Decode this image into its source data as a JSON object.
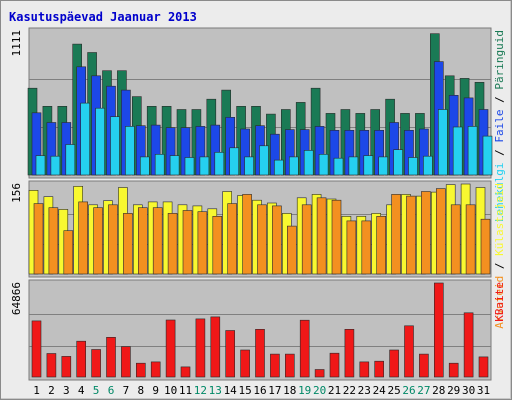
{
  "chart_data": {
    "type": "bar",
    "title": "Kasutuspäevad Jaanuar 2013",
    "colors": {
      "title": "#0000cc",
      "panel_bg": "#c0c0c0",
      "grid": "#808080",
      "weekday_label": "#000000",
      "weekend_label": "#008866",
      "sep_slash": "#000000"
    },
    "categories": [
      "1",
      "2",
      "3",
      "4",
      "5",
      "6",
      "7",
      "8",
      "9",
      "10",
      "11",
      "12",
      "13",
      "14",
      "15",
      "16",
      "17",
      "18",
      "19",
      "20",
      "21",
      "22",
      "23",
      "24",
      "25",
      "26",
      "27",
      "28",
      "29",
      "30",
      "31"
    ],
    "weekend_days": [
      "5",
      "6",
      "12",
      "13",
      "19",
      "20",
      "26",
      "27"
    ],
    "panels": [
      {
        "max_label": "1111",
        "ylim": [
          0,
          1111
        ],
        "series": [
          {
            "name": "Päringuid",
            "color": "#1a7a55",
            "values": [
              670,
              530,
              530,
              1010,
              945,
              805,
              805,
              605,
              530,
              530,
              505,
              505,
              585,
              655,
              530,
              530,
              470,
              505,
              560,
              670,
              475,
              505,
              475,
              505,
              585,
              475,
              475,
              1090,
              765,
              745,
              715
            ]
          },
          {
            "name": "Faile",
            "color": "#1c48e8",
            "values": [
              480,
              405,
              405,
              835,
              765,
              685,
              655,
              380,
              385,
              365,
              365,
              375,
              385,
              445,
              355,
              380,
              315,
              350,
              350,
              375,
              345,
              345,
              345,
              345,
              405,
              345,
              355,
              875,
              615,
              595,
              505
            ]
          },
          {
            "name": "Lehekülgi",
            "color": "#25d0f0",
            "values": [
              150,
              145,
              235,
              555,
              515,
              450,
              375,
              140,
              160,
              150,
              135,
              140,
              175,
              210,
              140,
              225,
              115,
              140,
              190,
              160,
              130,
              140,
              150,
              140,
              195,
              135,
              145,
              505,
              370,
              375,
              300
            ]
          }
        ]
      },
      {
        "max_label": "156",
        "ylim": [
          0,
          156
        ],
        "series": [
          {
            "name": "Külastajaid",
            "color": "#f8f830",
            "values": [
              145,
              134,
              112,
              152,
              120,
              127,
              150,
              120,
              125,
              125,
              120,
              118,
              113,
              143,
              136,
              128,
              123,
              105,
              132,
              138,
              130,
              100,
              100,
              105,
              120,
              138,
              135,
              142,
              155,
              156,
              150
            ]
          },
          {
            "name": "Arvuteid",
            "color": "#f39020",
            "values": [
              122,
              115,
              75,
              125,
              115,
              120,
              105,
              115,
              115,
              105,
              110,
              108,
              100,
              122,
              138,
              120,
              118,
              83,
              120,
              132,
              128,
              92,
              92,
              100,
              138,
              135,
              143,
              148,
              120,
              120,
              95
            ]
          }
        ]
      },
      {
        "max_label": "64866",
        "ylim": [
          0,
          64866
        ],
        "series": [
          {
            "name": "KBaite",
            "color": "#f01818",
            "values": [
              38700,
              16200,
              14200,
              24700,
              19000,
              27400,
              21000,
              9500,
              10400,
              39300,
              7000,
              40100,
              41500,
              32100,
              18600,
              32900,
              15800,
              15800,
              39200,
              5200,
              16400,
              32900,
              10400,
              10900,
              18600,
              35300,
              15800,
              64866,
              9500,
              44300,
              13900
            ]
          }
        ]
      }
    ]
  }
}
